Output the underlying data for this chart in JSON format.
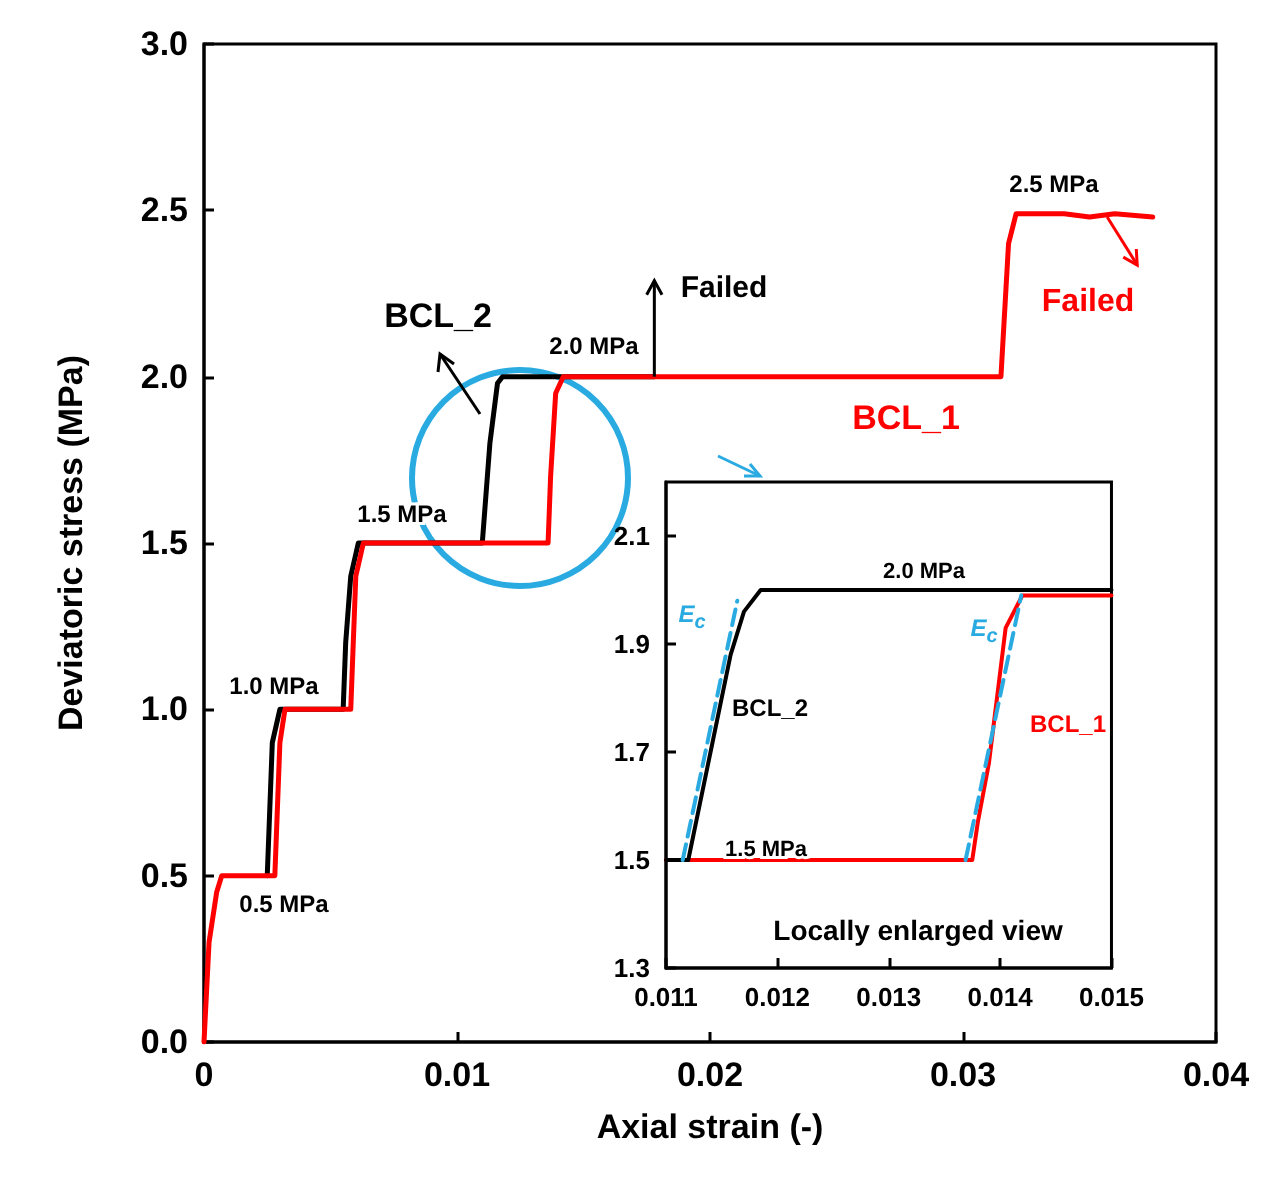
{
  "chart_data": [
    {
      "type": "line",
      "xlabel": "Axial strain (-)",
      "ylabel": "Deviatoric stress (MPa)",
      "xlim": [
        0,
        0.04
      ],
      "xticks": [
        0,
        0.01,
        0.02,
        0.03,
        0.04
      ],
      "ylim": [
        0,
        3.0
      ],
      "yticks": [
        {
          "value": 0,
          "label": "0.0"
        },
        {
          "value": 0.5,
          "label": "0.5"
        },
        {
          "value": 1,
          "label": "1.0"
        },
        {
          "value": 1.5,
          "label": "1.5"
        },
        {
          "value": 2,
          "label": "2.0"
        },
        {
          "value": 2.5,
          "label": "2.5"
        },
        {
          "value": 3,
          "label": "3.0"
        }
      ],
      "marker": "none",
      "annotations": [
        "0.5 MPa",
        "1.0 MPa",
        "1.5 MPa",
        "2.0 MPa",
        "2.5 MPa",
        {
          "text": "Failed",
          "x": 0.0178,
          "y": 2.0
        },
        {
          "text": "Failed",
          "x": 0.0357,
          "y": 2.48
        }
      ],
      "series": [
        {
          "name": "BCL_1",
          "color": "#ff0000",
          "x": [
            0,
            0.0002,
            0.0005,
            0.0007,
            0.0028,
            0.0029,
            0.003,
            0.0032,
            0.0058,
            0.0059,
            0.006,
            0.0063,
            0.0136,
            0.0137,
            0.0139,
            0.0142,
            0.0315,
            0.0318,
            0.0321,
            0.034,
            0.035,
            0.036,
            0.0375
          ],
          "values": [
            0,
            0.3,
            0.45,
            0.5,
            0.5,
            0.7,
            0.9,
            1.0,
            1.0,
            1.2,
            1.4,
            1.5,
            1.5,
            1.7,
            1.95,
            2.0,
            2.0,
            2.4,
            2.49,
            2.49,
            2.48,
            2.49,
            2.48
          ]
        },
        {
          "name": "BCL_2",
          "color": "#000000",
          "x": [
            0.0025,
            0.0026,
            0.0027,
            0.003,
            0.0055,
            0.0056,
            0.0058,
            0.0061,
            0.011,
            0.0113,
            0.0116,
            0.0118,
            0.0178
          ],
          "values": [
            0.5,
            0.7,
            0.9,
            1.0,
            1.0,
            1.2,
            1.4,
            1.5,
            1.5,
            1.8,
            1.98,
            2.0,
            2.0
          ]
        }
      ]
    },
    {
      "type": "line",
      "xlim": [
        0.011,
        0.015
      ],
      "xticks": [
        0.011,
        0.012,
        0.013,
        0.014,
        0.015
      ],
      "ylim": [
        1.3,
        2.2
      ],
      "yticks": [
        1.3,
        1.5,
        1.7,
        1.9,
        2.1
      ],
      "marker": "none",
      "annotations": [
        "2.0 MPa",
        "1.5 MPa",
        "Locally enlarged view"
      ],
      "series": [
        {
          "name": "BCL_2",
          "color": "#000000",
          "x": [
            0.011,
            0.0112,
            0.0114,
            0.01158,
            0.0117,
            0.01185,
            0.015
          ],
          "values": [
            1.5,
            1.5,
            1.7,
            1.88,
            1.96,
            2.0,
            2.0
          ]
        },
        {
          "name": "BCL_1",
          "color": "#ff0000",
          "x": [
            0.011,
            0.01375,
            0.0138,
            0.0139,
            0.01405,
            0.0142,
            0.0145,
            0.015
          ],
          "values": [
            1.5,
            1.5,
            1.57,
            1.68,
            1.93,
            1.99,
            1.99,
            1.99
          ]
        },
        {
          "name": "E$_{c}$",
          "color": "#29abe2",
          "line_style": "dashed",
          "x": [
            0.01115,
            0.01164
          ],
          "values": [
            1.5,
            1.98
          ]
        },
        {
          "name": "E$_{c}$",
          "color": "#29abe2",
          "line_style": "dashed",
          "x": [
            0.01369,
            0.01419
          ],
          "values": [
            1.5,
            1.99
          ]
        }
      ]
    }
  ]
}
